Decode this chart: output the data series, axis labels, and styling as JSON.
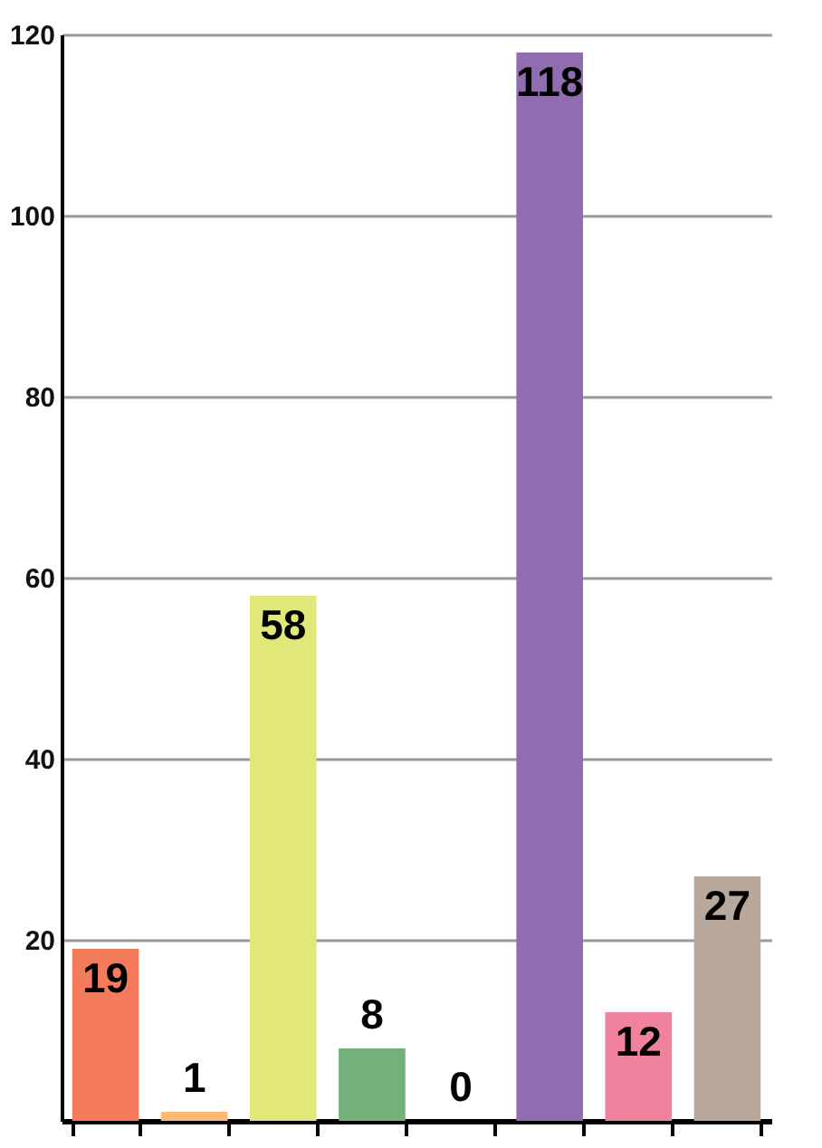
{
  "chart_data": {
    "type": "bar",
    "categories": [
      null,
      null,
      null,
      null,
      null,
      null,
      null,
      null
    ],
    "values": [
      19,
      1,
      58,
      8,
      0,
      118,
      12,
      27
    ],
    "colors": [
      "#f47c5c",
      "#fdba74",
      "#e2e77a",
      "#74b07a",
      null,
      "#8f6db0",
      "#f0829e",
      "#b8a79b"
    ],
    "ylim": [
      0,
      120
    ],
    "yticks": [
      20,
      40,
      60,
      80,
      100,
      120
    ],
    "grid": "y",
    "data_labels": true,
    "tick_labels": "y"
  }
}
